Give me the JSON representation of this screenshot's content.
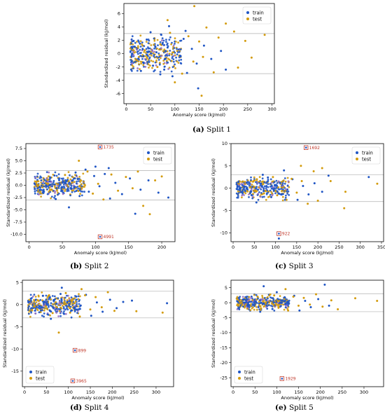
{
  "colors": {
    "train": "#1f55c4",
    "test": "#d39b0c",
    "overlap": "#9a6fc0",
    "annotation": "#c0392b"
  },
  "chart_data": [
    {
      "type": "scatter",
      "caption_tag": "(a)",
      "caption_text": "Split 1",
      "xlabel": "Anomaly score (kJ/mol)",
      "ylabel": "Standardized residual (kJ/mol)",
      "xlim": [
        -5,
        305
      ],
      "ylim": [
        -7.5,
        7.5
      ],
      "xticks": [
        0,
        50,
        100,
        150,
        200,
        250,
        300
      ],
      "yticks": [
        -6,
        -4,
        -2,
        0,
        2,
        4,
        6
      ],
      "hlines": [
        3,
        -3
      ],
      "legend": [
        "train",
        "test"
      ],
      "legend_position": "top-right",
      "train_points": [
        [
          12,
          0.5
        ],
        [
          20,
          -1.2
        ],
        [
          28,
          1.5
        ],
        [
          35,
          -0.4
        ],
        [
          42,
          2.1
        ],
        [
          48,
          0.3
        ],
        [
          55,
          -1.8
        ],
        [
          60,
          1.0
        ],
        [
          66,
          -0.6
        ],
        [
          72,
          2.8
        ],
        [
          78,
          -2.4
        ],
        [
          85,
          0.9
        ],
        [
          92,
          -1.1
        ],
        [
          100,
          1.8
        ],
        [
          110,
          -0.3
        ],
        [
          118,
          2.2
        ],
        [
          125,
          -2.9
        ],
        [
          135,
          0.7
        ],
        [
          145,
          -1.5
        ],
        [
          160,
          1.2
        ],
        [
          175,
          -0.8
        ],
        [
          195,
          0.4
        ],
        [
          205,
          -2.4
        ],
        [
          148,
          -5.2
        ],
        [
          122,
          3.4
        ],
        [
          88,
          4.1
        ],
        [
          70,
          -3.1
        ],
        [
          50,
          3.2
        ],
        [
          30,
          -2.6
        ],
        [
          15,
          1.9
        ],
        [
          40,
          -0.9
        ],
        [
          62,
          0.2
        ],
        [
          75,
          1.6
        ],
        [
          95,
          -3.4
        ],
        [
          108,
          0.6
        ]
      ],
      "test_points": [
        [
          18,
          0.9
        ],
        [
          26,
          -0.5
        ],
        [
          34,
          1.2
        ],
        [
          44,
          -1.4
        ],
        [
          52,
          0.6
        ],
        [
          58,
          2.3
        ],
        [
          64,
          -2.0
        ],
        [
          70,
          1.4
        ],
        [
          80,
          -0.7
        ],
        [
          90,
          3.1
        ],
        [
          98,
          -1.9
        ],
        [
          105,
          0.4
        ],
        [
          115,
          -3.0
        ],
        [
          128,
          2.6
        ],
        [
          138,
          -1.2
        ],
        [
          150,
          1.8
        ],
        [
          158,
          -0.5
        ],
        [
          165,
          3.9
        ],
        [
          180,
          -2.8
        ],
        [
          190,
          2.4
        ],
        [
          205,
          4.5
        ],
        [
          222,
          3.3
        ],
        [
          230,
          -2.1
        ],
        [
          245,
          1.9
        ],
        [
          258,
          -0.6
        ],
        [
          285,
          2.8
        ],
        [
          140,
          7.1
        ],
        [
          155,
          -6.3
        ],
        [
          85,
          5.0
        ],
        [
          100,
          -4.3
        ]
      ],
      "annotations": []
    },
    {
      "type": "scatter",
      "caption_tag": "(b)",
      "caption_text": "Split 2",
      "xlabel": "Anomaly score (kJ/mol)",
      "ylabel": "Standardized residual (kJ/mol)",
      "xlim": [
        -5,
        220
      ],
      "ylim": [
        -11.5,
        8.5
      ],
      "xticks": [
        0,
        50,
        100,
        150,
        200
      ],
      "yticks": [
        -10.0,
        -7.5,
        -5.0,
        -2.5,
        0.0,
        2.5,
        5.0,
        7.5
      ],
      "hlines": [
        3,
        -3
      ],
      "legend": [
        "train",
        "test"
      ],
      "legend_position": "top-right",
      "train_points": [
        [
          8,
          0.4
        ],
        [
          15,
          -1.0
        ],
        [
          22,
          1.3
        ],
        [
          30,
          -0.5
        ],
        [
          38,
          2.0
        ],
        [
          45,
          0.2
        ],
        [
          52,
          -1.6
        ],
        [
          58,
          1.1
        ],
        [
          64,
          -0.7
        ],
        [
          70,
          2.6
        ],
        [
          76,
          -2.2
        ],
        [
          82,
          0.8
        ],
        [
          90,
          -1.3
        ],
        [
          98,
          1.9
        ],
        [
          106,
          -0.2
        ],
        [
          114,
          2.3
        ],
        [
          122,
          -2.7
        ],
        [
          130,
          0.5
        ],
        [
          140,
          -1.8
        ],
        [
          152,
          1.4
        ],
        [
          160,
          -5.8
        ],
        [
          168,
          -0.9
        ],
        [
          180,
          1.0
        ],
        [
          195,
          -1.5
        ],
        [
          210,
          -2.5
        ],
        [
          100,
          3.8
        ],
        [
          120,
          3.5
        ],
        [
          60,
          -4.5
        ],
        [
          85,
          3.2
        ],
        [
          40,
          -2.8
        ]
      ],
      "test_points": [
        [
          12,
          0.8
        ],
        [
          20,
          -0.4
        ],
        [
          28,
          1.0
        ],
        [
          36,
          -1.2
        ],
        [
          46,
          0.5
        ],
        [
          54,
          2.1
        ],
        [
          62,
          -1.9
        ],
        [
          68,
          1.5
        ],
        [
          78,
          -0.8
        ],
        [
          88,
          2.8
        ],
        [
          96,
          -1.7
        ],
        [
          104,
          0.3
        ],
        [
          112,
          -2.9
        ],
        [
          124,
          2.2
        ],
        [
          134,
          -1.1
        ],
        [
          146,
          1.7
        ],
        [
          156,
          -0.6
        ],
        [
          164,
          2.8
        ],
        [
          172,
          -4.2
        ],
        [
          182,
          -5.9
        ],
        [
          190,
          1.0
        ],
        [
          200,
          1.8
        ],
        [
          75,
          5.0
        ]
      ],
      "annotations": [
        {
          "label": "1735",
          "x": 107,
          "y": 7.8
        },
        {
          "label": "4991",
          "x": 107,
          "y": -10.5
        }
      ]
    },
    {
      "type": "scatter",
      "caption_tag": "(c)",
      "caption_text": "Split 3",
      "xlabel": "Anomaly score (kJ/mol)",
      "ylabel": "Standardized residual (kJ/mol)",
      "xlim": [
        -5,
        355
      ],
      "ylim": [
        -12,
        10
      ],
      "xticks": [
        0,
        50,
        100,
        150,
        200,
        250,
        300,
        350
      ],
      "yticks": [
        -10,
        -5,
        0,
        5,
        10
      ],
      "hlines": [
        3,
        -3
      ],
      "legend": [
        "train",
        "test"
      ],
      "legend_position": "top-right",
      "train_points": [
        [
          10,
          0.3
        ],
        [
          18,
          -0.9
        ],
        [
          26,
          1.2
        ],
        [
          34,
          -0.4
        ],
        [
          42,
          1.8
        ],
        [
          50,
          0.2
        ],
        [
          58,
          -1.5
        ],
        [
          66,
          1.0
        ],
        [
          74,
          -0.6
        ],
        [
          82,
          2.4
        ],
        [
          90,
          -2.0
        ],
        [
          98,
          0.7
        ],
        [
          108,
          -1.2
        ],
        [
          118,
          1.6
        ],
        [
          128,
          -0.3
        ],
        [
          140,
          2.0
        ],
        [
          152,
          -2.6
        ],
        [
          165,
          0.5
        ],
        [
          178,
          -1.4
        ],
        [
          192,
          1.1
        ],
        [
          210,
          -0.8
        ],
        [
          225,
          2.8
        ],
        [
          320,
          2.5
        ],
        [
          108,
          -11.3
        ],
        [
          70,
          3.0
        ],
        [
          55,
          -3.2
        ],
        [
          120,
          4.0
        ]
      ],
      "test_points": [
        [
          14,
          0.7
        ],
        [
          22,
          -0.4
        ],
        [
          30,
          1.0
        ],
        [
          40,
          -1.1
        ],
        [
          48,
          0.4
        ],
        [
          56,
          2.0
        ],
        [
          64,
          -1.8
        ],
        [
          72,
          1.4
        ],
        [
          82,
          -0.7
        ],
        [
          94,
          2.5
        ],
        [
          104,
          -1.6
        ],
        [
          114,
          0.3
        ],
        [
          126,
          -2.6
        ],
        [
          138,
          2.1
        ],
        [
          150,
          -1.0
        ],
        [
          162,
          1.6
        ],
        [
          176,
          -3.5
        ],
        [
          190,
          3.8
        ],
        [
          200,
          -2.8
        ],
        [
          210,
          4.5
        ],
        [
          265,
          -0.8
        ],
        [
          262,
          -4.5
        ],
        [
          340,
          1.0
        ],
        [
          160,
          5.0
        ],
        [
          230,
          1.6
        ]
      ],
      "annotations": [
        {
          "label": "1692",
          "x": 172,
          "y": 9.1
        },
        {
          "label": "922",
          "x": 108,
          "y": -10.2
        }
      ]
    },
    {
      "type": "scatter",
      "caption_tag": "(d)",
      "caption_text": "Split 4",
      "xlabel": "Anomaly score (kJ/mol)",
      "ylabel": "Standardized residual (kJ/mol)",
      "xlim": [
        -5,
        340
      ],
      "ylim": [
        -18.5,
        5.5
      ],
      "xticks": [
        0,
        50,
        100,
        150,
        200,
        250,
        300
      ],
      "yticks": [
        -15,
        -10,
        -5,
        0,
        5
      ],
      "hlines": [
        3,
        -3
      ],
      "legend": [
        "train",
        "test"
      ],
      "legend_position": "bottom-left",
      "train_points": [
        [
          10,
          0.4
        ],
        [
          18,
          -0.8
        ],
        [
          26,
          1.1
        ],
        [
          34,
          -0.4
        ],
        [
          42,
          2.0
        ],
        [
          50,
          0.2
        ],
        [
          58,
          -1.4
        ],
        [
          66,
          1.0
        ],
        [
          74,
          -0.6
        ],
        [
          82,
          2.4
        ],
        [
          90,
          -2.1
        ],
        [
          98,
          0.7
        ],
        [
          108,
          -1.3
        ],
        [
          118,
          1.8
        ],
        [
          128,
          -0.2
        ],
        [
          140,
          2.2
        ],
        [
          152,
          -2.5
        ],
        [
          165,
          0.5
        ],
        [
          178,
          -1.6
        ],
        [
          195,
          1.1
        ],
        [
          210,
          -0.8
        ],
        [
          225,
          0.6
        ],
        [
          245,
          0.9
        ],
        [
          325,
          0.3
        ],
        [
          85,
          3.8
        ],
        [
          60,
          -3.2
        ]
      ],
      "test_points": [
        [
          14,
          0.8
        ],
        [
          22,
          -0.4
        ],
        [
          30,
          1.0
        ],
        [
          40,
          -1.2
        ],
        [
          48,
          0.5
        ],
        [
          56,
          2.1
        ],
        [
          64,
          -1.9
        ],
        [
          72,
          1.4
        ],
        [
          82,
          -0.7
        ],
        [
          94,
          2.6
        ],
        [
          104,
          -1.8
        ],
        [
          114,
          0.3
        ],
        [
          126,
          -2.7
        ],
        [
          138,
          2.1
        ],
        [
          150,
          -1.1
        ],
        [
          162,
          1.7
        ],
        [
          176,
          -0.6
        ],
        [
          190,
          2.8
        ],
        [
          205,
          -1.4
        ],
        [
          255,
          -1.5
        ],
        [
          315,
          -1.8
        ],
        [
          78,
          -6.3
        ],
        [
          130,
          3.5
        ]
      ],
      "annotations": [
        {
          "label": "899",
          "x": 115,
          "y": -10.3
        },
        {
          "label": "3965",
          "x": 110,
          "y": -17.2
        }
      ]
    },
    {
      "type": "scatter",
      "caption_tag": "(e)",
      "caption_text": "Split 5",
      "xlabel": "Anomaly score (kJ/mol)",
      "ylabel": "Standardized residual (kJ/mol)",
      "xlim": [
        -5,
        345
      ],
      "ylim": [
        -28,
        7.5
      ],
      "xticks": [
        0,
        50,
        100,
        150,
        200,
        250,
        300
      ],
      "yticks": [
        -25,
        -20,
        -15,
        -10,
        -5,
        0,
        5
      ],
      "hlines": [
        3,
        -3
      ],
      "legend": [
        "train",
        "test"
      ],
      "legend_position": "bottom-left",
      "train_points": [
        [
          10,
          0.4
        ],
        [
          18,
          -0.9
        ],
        [
          26,
          1.2
        ],
        [
          34,
          -0.4
        ],
        [
          42,
          2.0
        ],
        [
          50,
          0.2
        ],
        [
          58,
          -1.5
        ],
        [
          66,
          1.0
        ],
        [
          74,
          -0.6
        ],
        [
          82,
          2.6
        ],
        [
          90,
          -2.1
        ],
        [
          98,
          0.7
        ],
        [
          108,
          -1.3
        ],
        [
          118,
          1.8
        ],
        [
          128,
          -0.3
        ],
        [
          140,
          2.3
        ],
        [
          152,
          -2.6
        ],
        [
          165,
          0.6
        ],
        [
          178,
          -1.5
        ],
        [
          195,
          1.2
        ],
        [
          210,
          6.0
        ],
        [
          220,
          -1.0
        ],
        [
          70,
          5.5
        ],
        [
          62,
          -3.0
        ],
        [
          100,
          3.5
        ]
      ],
      "test_points": [
        [
          14,
          0.8
        ],
        [
          22,
          -0.4
        ],
        [
          30,
          1.0
        ],
        [
          40,
          -1.1
        ],
        [
          48,
          0.5
        ],
        [
          56,
          2.0
        ],
        [
          64,
          -1.9
        ],
        [
          72,
          1.4
        ],
        [
          82,
          -0.7
        ],
        [
          94,
          2.4
        ],
        [
          104,
          -1.7
        ],
        [
          114,
          0.3
        ],
        [
          126,
          -2.6
        ],
        [
          138,
          2.0
        ],
        [
          150,
          -1.0
        ],
        [
          162,
          1.6
        ],
        [
          176,
          -0.6
        ],
        [
          190,
          2.8
        ],
        [
          205,
          -1.3
        ],
        [
          225,
          0.8
        ],
        [
          240,
          -2.2
        ],
        [
          280,
          1.5
        ],
        [
          330,
          0.6
        ],
        [
          120,
          4.5
        ]
      ],
      "annotations": [
        {
          "label": "1929",
          "x": 112,
          "y": -25.3
        }
      ]
    }
  ]
}
